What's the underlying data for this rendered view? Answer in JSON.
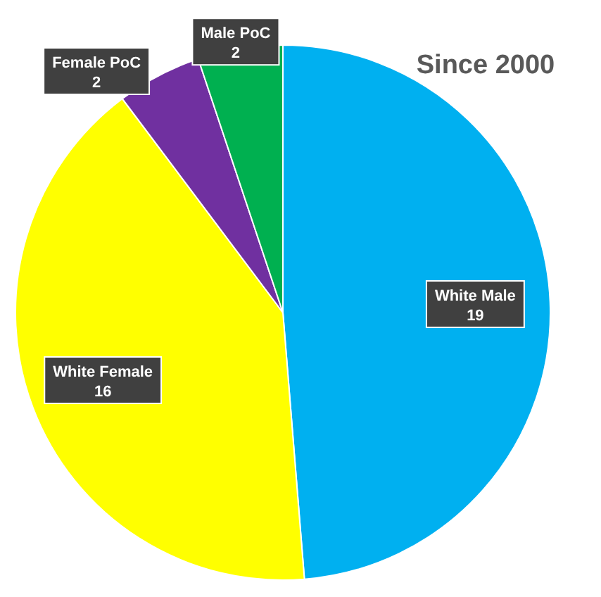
{
  "chart_data": {
    "type": "pie",
    "title": "Since 2000",
    "categories": [
      "White Male",
      "White Female",
      "Female PoC",
      "Male PoC"
    ],
    "values": [
      19,
      16,
      2,
      2
    ],
    "colors": [
      "#00b0f0",
      "#ffff00",
      "#7030a0",
      "#00b050"
    ],
    "data_labels": true
  }
}
